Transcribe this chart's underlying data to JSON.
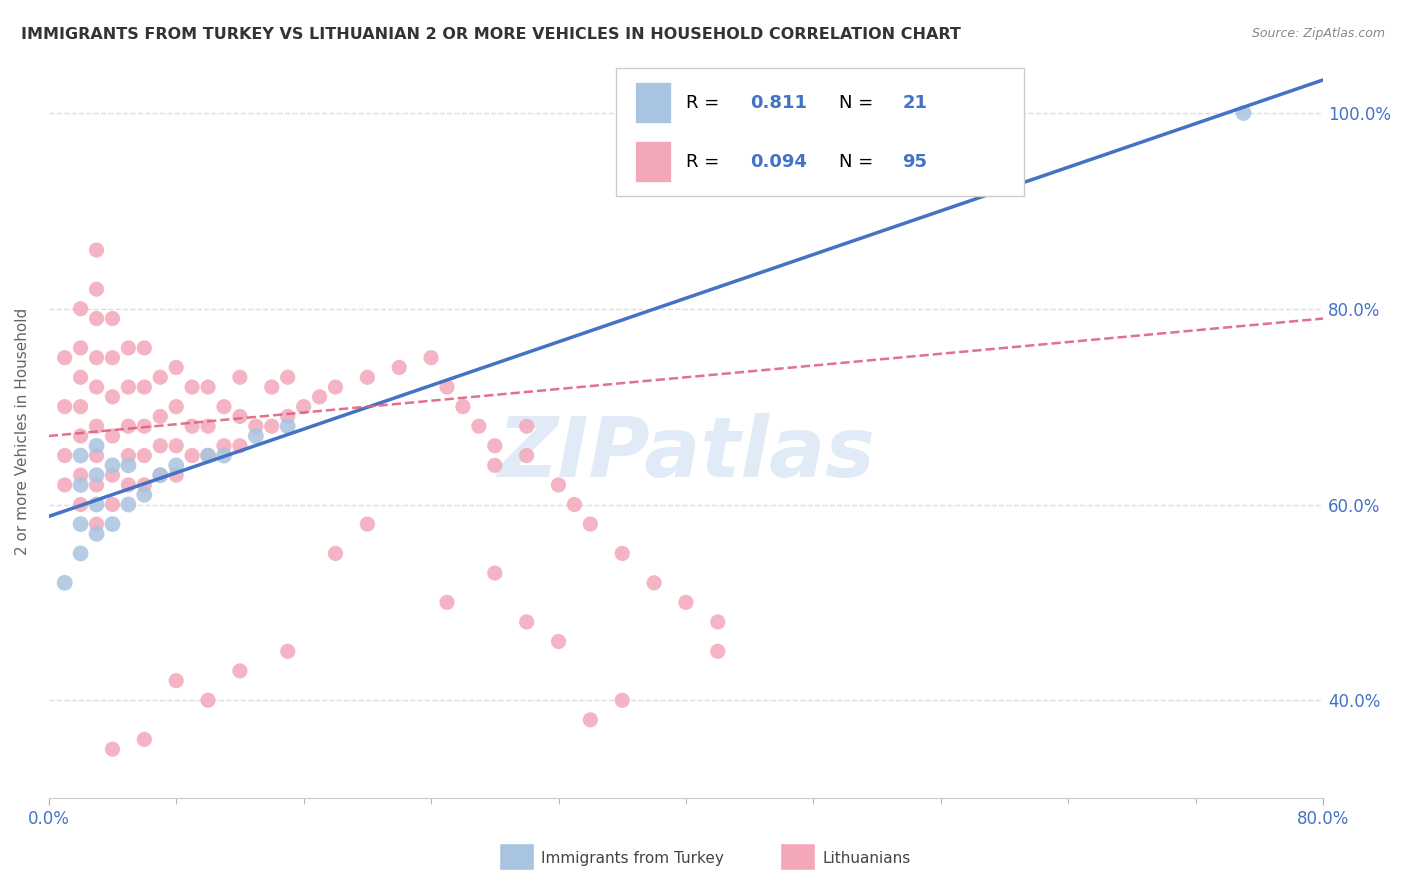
{
  "title": "IMMIGRANTS FROM TURKEY VS LITHUANIAN 2 OR MORE VEHICLES IN HOUSEHOLD CORRELATION CHART",
  "source": "Source: ZipAtlas.com",
  "ylabel": "2 or more Vehicles in Household",
  "blue_label": "Immigrants from Turkey",
  "pink_label": "Lithuanians",
  "blue_R": 0.811,
  "blue_N": 21,
  "pink_R": 0.094,
  "pink_N": 95,
  "blue_color": "#A8C4E0",
  "pink_color": "#F4A7B9",
  "blue_line_color": "#4472C4",
  "pink_line_color": "#E06080",
  "watermark": "ZIPatlas",
  "watermark_color": "#C5D8F0",
  "xlim": [
    0.0,
    0.8
  ],
  "ylim": [
    0.3,
    1.05
  ],
  "legend_border_color": "#CCCCCC",
  "grid_color": "#DDDDDD",
  "background_color": "#FFFFFF",
  "title_color": "#333333",
  "tick_label_color": "#4472C4",
  "axis_label_color": "#666666",
  "blue_scatter_x": [
    0.01,
    0.02,
    0.02,
    0.02,
    0.02,
    0.03,
    0.03,
    0.03,
    0.03,
    0.04,
    0.04,
    0.05,
    0.05,
    0.06,
    0.07,
    0.08,
    0.1,
    0.11,
    0.13,
    0.15,
    0.75
  ],
  "blue_scatter_y": [
    0.52,
    0.55,
    0.58,
    0.62,
    0.65,
    0.57,
    0.6,
    0.63,
    0.66,
    0.58,
    0.64,
    0.6,
    0.64,
    0.61,
    0.63,
    0.64,
    0.65,
    0.65,
    0.67,
    0.68,
    1.0
  ],
  "pink_scatter_x": [
    0.01,
    0.01,
    0.01,
    0.01,
    0.02,
    0.02,
    0.02,
    0.02,
    0.02,
    0.02,
    0.02,
    0.03,
    0.03,
    0.03,
    0.03,
    0.03,
    0.03,
    0.03,
    0.03,
    0.03,
    0.04,
    0.04,
    0.04,
    0.04,
    0.04,
    0.04,
    0.05,
    0.05,
    0.05,
    0.05,
    0.05,
    0.06,
    0.06,
    0.06,
    0.06,
    0.06,
    0.07,
    0.07,
    0.07,
    0.07,
    0.08,
    0.08,
    0.08,
    0.08,
    0.09,
    0.09,
    0.09,
    0.1,
    0.1,
    0.1,
    0.11,
    0.11,
    0.12,
    0.12,
    0.12,
    0.13,
    0.14,
    0.14,
    0.15,
    0.15,
    0.16,
    0.17,
    0.18,
    0.2,
    0.22,
    0.24,
    0.25,
    0.26,
    0.27,
    0.28,
    0.28,
    0.3,
    0.3,
    0.32,
    0.33,
    0.34,
    0.36,
    0.38,
    0.4,
    0.42,
    0.42,
    0.34,
    0.36,
    0.3,
    0.32,
    0.28,
    0.25,
    0.2,
    0.18,
    0.15,
    0.12,
    0.1,
    0.08,
    0.06,
    0.04
  ],
  "pink_scatter_y": [
    0.62,
    0.65,
    0.7,
    0.75,
    0.6,
    0.63,
    0.67,
    0.7,
    0.73,
    0.76,
    0.8,
    0.58,
    0.62,
    0.65,
    0.68,
    0.72,
    0.75,
    0.79,
    0.82,
    0.86,
    0.6,
    0.63,
    0.67,
    0.71,
    0.75,
    0.79,
    0.62,
    0.65,
    0.68,
    0.72,
    0.76,
    0.62,
    0.65,
    0.68,
    0.72,
    0.76,
    0.63,
    0.66,
    0.69,
    0.73,
    0.63,
    0.66,
    0.7,
    0.74,
    0.65,
    0.68,
    0.72,
    0.65,
    0.68,
    0.72,
    0.66,
    0.7,
    0.66,
    0.69,
    0.73,
    0.68,
    0.68,
    0.72,
    0.69,
    0.73,
    0.7,
    0.71,
    0.72,
    0.73,
    0.74,
    0.75,
    0.72,
    0.7,
    0.68,
    0.66,
    0.64,
    0.65,
    0.68,
    0.62,
    0.6,
    0.58,
    0.55,
    0.52,
    0.5,
    0.48,
    0.45,
    0.38,
    0.4,
    0.48,
    0.46,
    0.53,
    0.5,
    0.58,
    0.55,
    0.45,
    0.43,
    0.4,
    0.42,
    0.36,
    0.35
  ]
}
